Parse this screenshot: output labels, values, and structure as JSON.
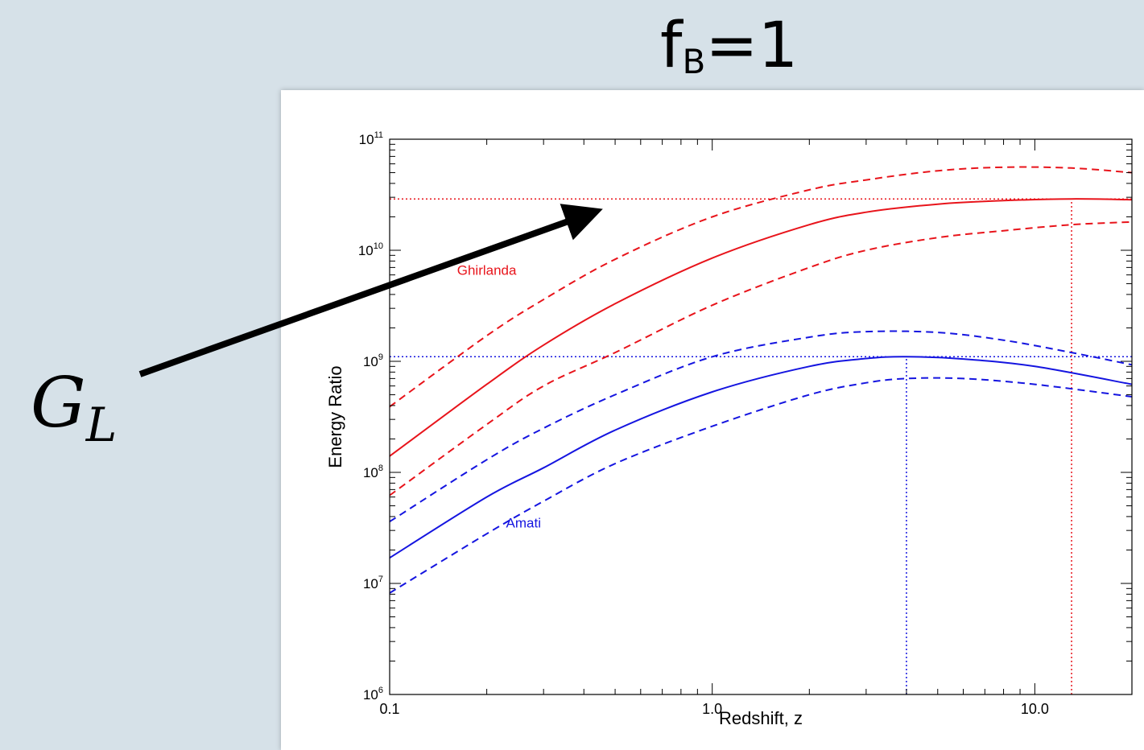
{
  "slide": {
    "title_main": "f",
    "title_sub": "B",
    "title_rest": "=1",
    "callout_main": "G",
    "callout_sub": "L"
  },
  "chart_data": {
    "type": "line",
    "xlabel": "Redshift, z",
    "ylabel": "Energy Ratio",
    "xscale": "log",
    "yscale": "log",
    "xlim": [
      0.1,
      20
    ],
    "ylim": [
      1000000,
      100000000000
    ],
    "x_tick_labels": [
      "0.1",
      "1.0",
      "10.0"
    ],
    "y_tick_labels": [
      {
        "base": "10",
        "exp": "6",
        "value": 1000000
      },
      {
        "base": "10",
        "exp": "7",
        "value": 10000000
      },
      {
        "base": "10",
        "exp": "8",
        "value": 100000000
      },
      {
        "base": "10",
        "exp": "9",
        "value": 1000000000
      },
      {
        "base": "10",
        "exp": "10",
        "value": 10000000000
      },
      {
        "base": "10",
        "exp": "11",
        "value": 100000000000
      }
    ],
    "colors": {
      "ghirlanda": "#e8141b",
      "amati": "#1515e0"
    },
    "annotations": [
      {
        "text": "Ghirlanda",
        "color": "#e8141b",
        "x": 0.2,
        "y": 6000000000
      },
      {
        "text": "Amati",
        "color": "#1515e0",
        "x": 0.26,
        "y": 32000000
      }
    ],
    "series": [
      {
        "group": "Ghirlanda",
        "style": "solid",
        "color": "#e8141b",
        "x": [
          0.1,
          0.2,
          0.3,
          0.5,
          1.0,
          2.0,
          3.0,
          5.0,
          8.0,
          13.0,
          20.0
        ],
        "y": [
          140000000,
          620000000,
          1400000000,
          3300000000,
          8500000000,
          17000000000,
          22000000000,
          26000000000,
          28000000000,
          29000000000,
          28500000000
        ]
      },
      {
        "group": "Ghirlanda",
        "style": "dashed",
        "color": "#e8141b",
        "x": [
          0.1,
          0.2,
          0.3,
          0.5,
          1.0,
          2.0,
          3.0,
          5.0,
          8.0,
          13.0,
          20.0
        ],
        "y": [
          390000000,
          1700000000,
          3600000000,
          8300000000,
          20000000000,
          35000000000,
          43000000000,
          52000000000,
          56000000000,
          55000000000,
          50000000000
        ]
      },
      {
        "group": "Ghirlanda",
        "style": "dashed",
        "color": "#e8141b",
        "x": [
          0.1,
          0.2,
          0.3,
          0.5,
          1.0,
          2.0,
          3.0,
          5.0,
          8.0,
          13.0,
          20.0
        ],
        "y": [
          62000000,
          270000000,
          600000000,
          1200000000,
          3200000000,
          7000000000,
          10000000000,
          13000000000,
          15000000000,
          17000000000,
          18000000000
        ]
      },
      {
        "group": "Amati",
        "style": "solid",
        "color": "#1515e0",
        "x": [
          0.1,
          0.2,
          0.3,
          0.5,
          1.0,
          2.0,
          3.0,
          4.0,
          6.0,
          10.0,
          20.0
        ],
        "y": [
          17000000,
          60000000,
          110000000,
          240000000,
          530000000,
          900000000,
          1060000000,
          1100000000,
          1050000000,
          900000000,
          620000000
        ]
      },
      {
        "group": "Amati",
        "style": "dashed",
        "color": "#1515e0",
        "x": [
          0.1,
          0.2,
          0.3,
          0.5,
          1.0,
          2.0,
          3.0,
          5.0,
          8.0,
          13.0,
          20.0
        ],
        "y": [
          36000000,
          130000000,
          250000000,
          500000000,
          1100000000,
          1650000000,
          1850000000,
          1820000000,
          1550000000,
          1200000000,
          930000000
        ]
      },
      {
        "group": "Amati",
        "style": "dashed",
        "color": "#1515e0",
        "x": [
          0.1,
          0.2,
          0.3,
          0.5,
          1.0,
          2.0,
          3.0,
          4.0,
          6.0,
          10.0,
          20.0
        ],
        "y": [
          8200000,
          28000000,
          55000000,
          120000000,
          260000000,
          500000000,
          640000000,
          700000000,
          700000000,
          620000000,
          480000000
        ]
      }
    ],
    "reference_lines": [
      {
        "orientation": "horizontal",
        "value": 29000000000,
        "color": "#e8141b",
        "style": "dotted"
      },
      {
        "orientation": "horizontal",
        "value": 1100000000,
        "color": "#1515e0",
        "style": "dotted"
      },
      {
        "orientation": "vertical",
        "value": 13.0,
        "color": "#e8141b",
        "style": "dotted",
        "from": 1000000,
        "to": 29000000000
      },
      {
        "orientation": "vertical",
        "value": 4.0,
        "color": "#1515e0",
        "style": "dotted",
        "from": 1000000,
        "to": 1100000000
      }
    ],
    "arrow": {
      "from_label": "G_L",
      "to": {
        "x": 0.45,
        "y": 29000000000
      }
    }
  }
}
